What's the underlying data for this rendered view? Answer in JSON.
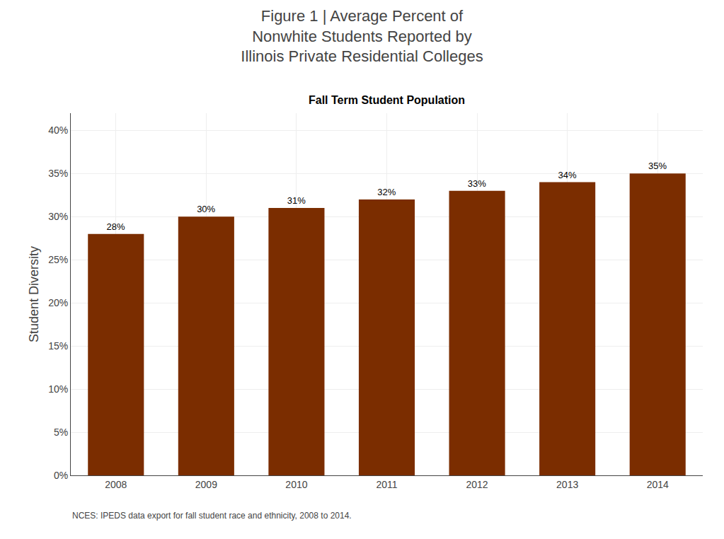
{
  "chart_data": {
    "type": "bar",
    "title": "Figure 1 | Average Percent of\nNonwhite Students Reported by\nIllinois Private Residential Colleges",
    "subtitle": "Fall Term Student Population",
    "y_label": "Student Diversity",
    "annotations": [
      "NCES: IPEDS data export for fall student race and ethnicity, 2008 to 2014."
    ],
    "categories": [
      "2008",
      "2009",
      "2010",
      "2011",
      "2012",
      "2013",
      "2014"
    ],
    "values": [
      28,
      30,
      31,
      32,
      33,
      34,
      35
    ],
    "value_labels": [
      "28%",
      "30%",
      "31%",
      "32%",
      "33%",
      "34%",
      "35%"
    ],
    "data_labels": true,
    "color": "#7B2D00",
    "ylim": [
      0,
      42
    ],
    "yticks": [
      {
        "value": 0,
        "label": "0%"
      },
      {
        "value": 5,
        "label": "5%"
      },
      {
        "value": 10,
        "label": "10%"
      },
      {
        "value": 15,
        "label": "15%"
      },
      {
        "value": 20,
        "label": "20%"
      },
      {
        "value": 25,
        "label": "25%"
      },
      {
        "value": 30,
        "label": "30%"
      },
      {
        "value": 35,
        "label": "35%"
      },
      {
        "value": 40,
        "label": "40%"
      }
    ],
    "grid": true
  }
}
